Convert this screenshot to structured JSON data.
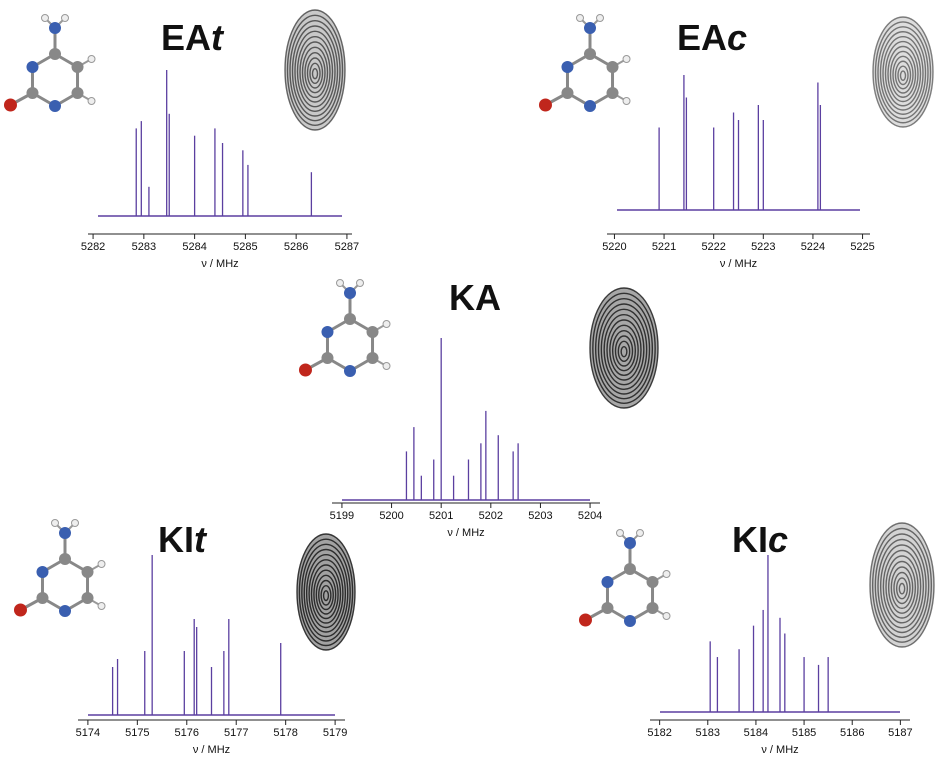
{
  "chart_data": [
    {
      "type": "spectrum",
      "title": [
        "EA",
        "t"
      ],
      "x_label": "ν / MHz",
      "color": "#5b3fa0",
      "x": [
        5282.85,
        5282.95,
        5283.1,
        5283.45,
        5283.5,
        5284.0,
        5284.4,
        5284.55,
        5284.95,
        5285.05,
        5286.3
      ],
      "values": [
        60,
        65,
        20,
        100,
        70,
        55,
        60,
        50,
        45,
        35,
        30
      ],
      "xlim": [
        5281.9,
        5287.1
      ],
      "xticks": [
        5282,
        5283,
        5284,
        5285,
        5286,
        5287
      ],
      "ylim": [
        0,
        100
      ]
    },
    {
      "type": "spectrum",
      "title": [
        "EA",
        "c"
      ],
      "x_label": "ν / MHz",
      "color": "#5b3fa0",
      "x": [
        5220.9,
        5221.4,
        5221.45,
        5222.0,
        5222.4,
        5222.5,
        5222.9,
        5223.0,
        5224.1,
        5224.15
      ],
      "values": [
        55,
        90,
        75,
        55,
        65,
        60,
        70,
        60,
        85,
        70
      ],
      "xlim": [
        5219.85,
        5225.15
      ],
      "xticks": [
        5220,
        5221,
        5222,
        5223,
        5224,
        5225
      ],
      "ylim": [
        0,
        100
      ]
    },
    {
      "type": "spectrum",
      "title": [
        "KA"
      ],
      "x_label": "ν / MHz",
      "color": "#5b3fa0",
      "x": [
        5200.3,
        5200.45,
        5200.6,
        5200.85,
        5201.0,
        5201.25,
        5201.55,
        5201.8,
        5201.9,
        5202.15,
        5202.45,
        5202.55
      ],
      "values": [
        30,
        45,
        15,
        25,
        100,
        15,
        25,
        35,
        55,
        40,
        30,
        35
      ],
      "xlim": [
        5198.8,
        5204.2
      ],
      "xticks": [
        5199,
        5200,
        5201,
        5202,
        5203,
        5204
      ],
      "ylim": [
        0,
        100
      ]
    },
    {
      "type": "spectrum",
      "title": [
        "KI",
        "t"
      ],
      "x_label": "ν / MHz",
      "color": "#5b3fa0",
      "x": [
        5174.5,
        5174.6,
        5175.15,
        5175.3,
        5175.95,
        5176.15,
        5176.2,
        5176.5,
        5176.75,
        5176.85,
        5177.9
      ],
      "values": [
        30,
        35,
        40,
        100,
        40,
        60,
        55,
        30,
        40,
        60,
        45
      ],
      "xlim": [
        5173.8,
        5179.2
      ],
      "xticks": [
        5174,
        5175,
        5176,
        5177,
        5178,
        5179
      ],
      "ylim": [
        0,
        100
      ]
    },
    {
      "type": "spectrum",
      "title": [
        "KI",
        "c"
      ],
      "x_label": "ν / MHz",
      "color": "#5b3fa0",
      "x": [
        5183.05,
        5183.2,
        5183.65,
        5183.95,
        5184.15,
        5184.25,
        5184.5,
        5184.6,
        5185.0,
        5185.3,
        5185.5
      ],
      "values": [
        45,
        35,
        40,
        55,
        65,
        100,
        60,
        50,
        35,
        30,
        35
      ],
      "xlim": [
        5181.8,
        5187.2
      ],
      "xticks": [
        5182,
        5183,
        5184,
        5185,
        5186,
        5187
      ],
      "ylim": [
        0,
        100
      ]
    }
  ]
}
